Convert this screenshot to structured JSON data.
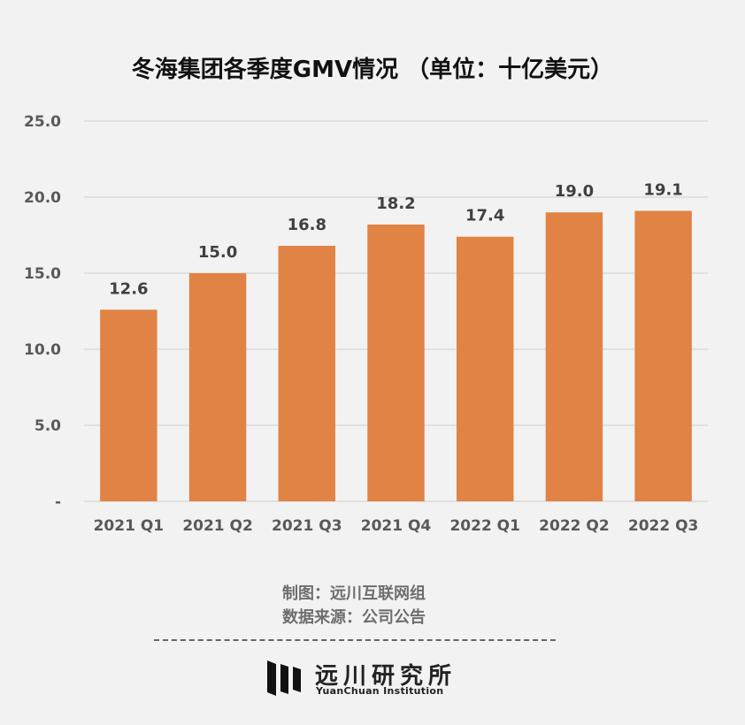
{
  "chart_data": {
    "type": "bar",
    "title": "冬海集团各季度GMV情况 （单位：十亿美元）",
    "xlabel": "",
    "ylabel": "",
    "categories": [
      "2021 Q1",
      "2021 Q2",
      "2021 Q3",
      "2021 Q4",
      "2022 Q1",
      "2022 Q2",
      "2022 Q3"
    ],
    "values": [
      12.6,
      15.0,
      16.8,
      18.2,
      17.4,
      19.0,
      19.1
    ],
    "data_labels": [
      "12.6",
      "15.0",
      "16.8",
      "18.2",
      "17.4",
      "19.0",
      "19.1"
    ],
    "ylim": [
      0,
      25
    ],
    "yticks": [
      0,
      5,
      10,
      15,
      20,
      25
    ],
    "ytick_labels": [
      "-",
      "5.0",
      "10.0",
      "15.0",
      "20.0",
      "25.0"
    ],
    "grid": true,
    "legend": "none",
    "bar_color": "#e08344",
    "grid_color": "#d9d9d9",
    "text_color": "#595959"
  },
  "footer": {
    "credit_line1": "制图：远川互联网组",
    "credit_line2": "数据来源：公司公告"
  },
  "logo": {
    "name_cn": "远川研究所",
    "name_en": "YuanChuan Institution"
  }
}
